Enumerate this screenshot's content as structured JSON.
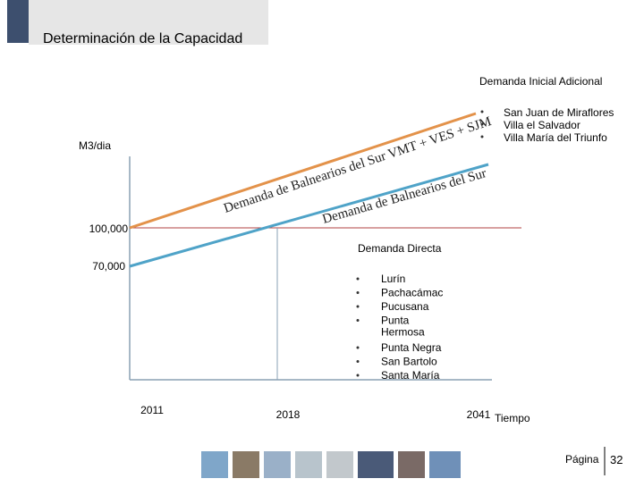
{
  "header": {
    "title": "Determinación de la Capacidad"
  },
  "chart": {
    "y_label": "M3/dia",
    "y_ticks": [
      "100,000",
      "70,000"
    ],
    "x_ticks": [
      "2011",
      "2018",
      "2041"
    ],
    "x_label": "Tiempo",
    "upper_line_label": "Demanda de Balnearios del Sur VMT + VES + SJM",
    "lower_line_label": "Demanda de Balnearios del Sur"
  },
  "additional": {
    "title": "Demanda Inicial Adicional",
    "items": [
      "San Juan de Miraflores",
      "Villa el Salvador",
      "Villa María del Triunfo"
    ]
  },
  "direct": {
    "title": "Demanda Directa",
    "items": [
      "Lurín",
      "Pachacámac",
      "Pucusana",
      "Punta Hermosa",
      "Punta Negra",
      "San Bartolo",
      "Santa María"
    ]
  },
  "footer": {
    "page_label": "Página",
    "page_number": "32"
  }
}
